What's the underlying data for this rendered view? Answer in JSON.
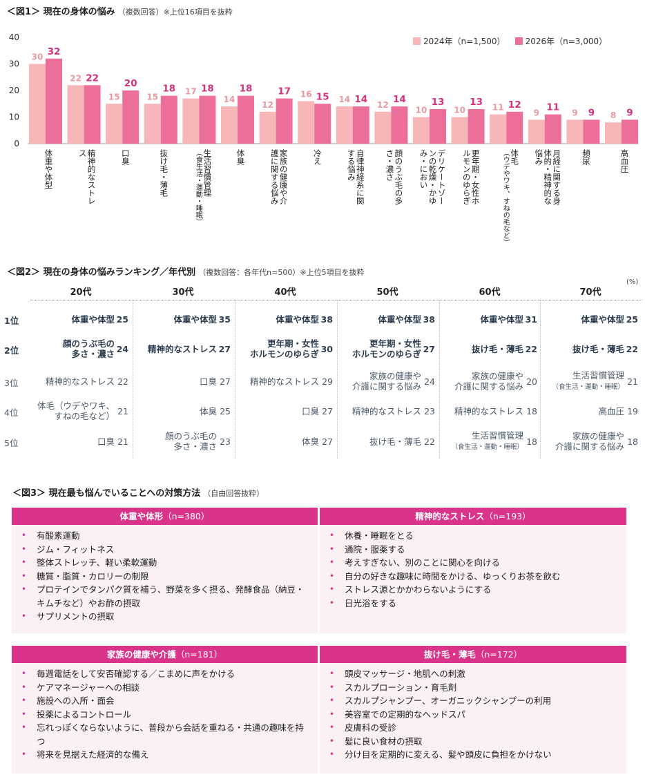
{
  "fig1": {
    "title": "＜図1＞ 現在の身体の悩み",
    "subtitle": "（複数回答）※上位16項目を抜粋"
  },
  "chart_data": {
    "type": "bar",
    "ylim": [
      0,
      40
    ],
    "yticks": [
      "0",
      "10",
      "20",
      "30",
      "40"
    ],
    "ylabel": "(%)",
    "legend_position": "top-right",
    "colors": {
      "2024": "#f7b7b8",
      "2026": "#ec6f9b",
      "label2024": "#e79aa0",
      "label2026": "#d4317e"
    },
    "series": [
      {
        "name": "2024年（n=1,500）",
        "values": [
          30,
          22,
          15,
          15,
          17,
          14,
          12,
          16,
          14,
          12,
          10,
          10,
          11,
          9,
          9,
          8
        ]
      },
      {
        "name": "2026年（n=3,000）",
        "values": [
          32,
          22,
          20,
          18,
          18,
          18,
          17,
          15,
          14,
          14,
          13,
          13,
          12,
          11,
          9,
          9
        ]
      }
    ],
    "categories": [
      {
        "main": "体重や体型",
        "sub": ""
      },
      {
        "main": "精神的なストレス",
        "sub": ""
      },
      {
        "main": "口臭",
        "sub": ""
      },
      {
        "main": "抜け毛・薄毛",
        "sub": ""
      },
      {
        "main": "生活習慣管理",
        "sub": "（食生活・運動・睡眠）"
      },
      {
        "main": "体臭",
        "sub": ""
      },
      {
        "main": "家族の健康や介護に関する悩み",
        "sub": ""
      },
      {
        "main": "冷え",
        "sub": ""
      },
      {
        "main": "自律神経系に関する悩み",
        "sub": ""
      },
      {
        "main": "顔のうぶ毛の多さ・濃さ",
        "sub": ""
      },
      {
        "main": "デリケートゾーンの乾燥・かゆみ・におい",
        "sub": ""
      },
      {
        "main": "更年期・女性ホルモンのゆらぎ",
        "sub": ""
      },
      {
        "main": "体毛",
        "sub": "（ウデやワキ、すねの毛など）"
      },
      {
        "main": "月経に関する身体的・精神的な悩み",
        "sub": ""
      },
      {
        "main": "頻尿",
        "sub": ""
      },
      {
        "main": "高血圧",
        "sub": ""
      }
    ]
  },
  "fig2": {
    "title": "＜図2＞ 現在の身体の悩みランキング／年代別",
    "subtitle": "（複数回答：各年代n=500）※上位5項目を抜粋",
    "pct": "(%)",
    "ranks": [
      "1位",
      "2位",
      "3位",
      "4位",
      "5位"
    ],
    "columns": [
      {
        "age": "20代",
        "rows": [
          {
            "l1": "体重や体型",
            "l2": "",
            "v": "25"
          },
          {
            "l1": "顔のうぶ毛の",
            "l2": "多さ・濃さ",
            "v": "24"
          },
          {
            "l1": "精神的なストレス",
            "l2": "",
            "v": "22"
          },
          {
            "l1": "体毛（ウデやワキ、",
            "l2": "すねの毛など）",
            "v": "21"
          },
          {
            "l1": "口臭",
            "l2": "",
            "v": "21"
          }
        ]
      },
      {
        "age": "30代",
        "rows": [
          {
            "l1": "体重や体型",
            "l2": "",
            "v": "35"
          },
          {
            "l1": "精神的なストレス",
            "l2": "",
            "v": "27"
          },
          {
            "l1": "口臭",
            "l2": "",
            "v": "27"
          },
          {
            "l1": "体臭",
            "l2": "",
            "v": "25"
          },
          {
            "l1": "顔のうぶ毛の",
            "l2": "多さ・濃さ",
            "v": "23"
          }
        ]
      },
      {
        "age": "40代",
        "rows": [
          {
            "l1": "体重や体型",
            "l2": "",
            "v": "38"
          },
          {
            "l1": "更年期・女性",
            "l2": "ホルモンのゆらぎ",
            "v": "30"
          },
          {
            "l1": "精神的なストレス",
            "l2": "",
            "v": "29"
          },
          {
            "l1": "口臭",
            "l2": "",
            "v": "27"
          },
          {
            "l1": "体臭",
            "l2": "",
            "v": "27"
          }
        ]
      },
      {
        "age": "50代",
        "rows": [
          {
            "l1": "体重や体型",
            "l2": "",
            "v": "38"
          },
          {
            "l1": "更年期・女性",
            "l2": "ホルモンのゆらぎ",
            "v": "27"
          },
          {
            "l1": "家族の健康や",
            "l2": "介護に関する悩み",
            "v": "24"
          },
          {
            "l1": "精神的なストレス",
            "l2": "",
            "v": "23"
          },
          {
            "l1": "抜け毛・薄毛",
            "l2": "",
            "v": "22"
          }
        ]
      },
      {
        "age": "60代",
        "rows": [
          {
            "l1": "体重や体型",
            "l2": "",
            "v": "31"
          },
          {
            "l1": "抜け毛・薄毛",
            "l2": "",
            "v": "22"
          },
          {
            "l1": "家族の健康や",
            "l2": "介護に関する悩み",
            "v": "20"
          },
          {
            "l1": "精神的なストレス",
            "l2": "",
            "v": "18"
          },
          {
            "l1": "生活習慣管理",
            "l2": "（食生活・運動・睡眠）",
            "v": "18"
          }
        ]
      },
      {
        "age": "70代",
        "rows": [
          {
            "l1": "体重や体型",
            "l2": "",
            "v": "25"
          },
          {
            "l1": "抜け毛・薄毛",
            "l2": "",
            "v": "22"
          },
          {
            "l1": "生活習慣管理",
            "l2": "（食生活・運動・睡眠）",
            "v": "21"
          },
          {
            "l1": "高血圧",
            "l2": "",
            "v": "19"
          },
          {
            "l1": "家族の健康や",
            "l2": "介護に関する悩み",
            "v": "18"
          }
        ]
      }
    ]
  },
  "fig3": {
    "title": "＜図3＞ 現在最も悩んでいることへの対策方法",
    "subtitle": "（自由回答抜粋）",
    "boxes": [
      {
        "title": "体重や体形",
        "n": "（n=380）",
        "items": [
          "有酸素運動",
          "ジム・フィットネス",
          "整体ストレッチ、軽い柔軟運動",
          "糖質・脂質・カロリーの制限",
          "プロテインでタンパク質を補う、野菜を多く摂る、発酵食品（納豆・キムチなど）やお酢の摂取",
          "サプリメントの摂取"
        ]
      },
      {
        "title": "精神的なストレス",
        "n": "（n=193）",
        "items": [
          "休養・睡眠をとる",
          "通院・服薬する",
          "考えすぎない、別のことに関心を向ける",
          "自分の好きな趣味に時間をかける、ゆっくりお茶を飲む",
          "ストレス源とかかわらないようにする",
          "日光浴をする"
        ]
      },
      {
        "title": "家族の健康や介護",
        "n": "（n=181）",
        "items": [
          "毎週電話をして安否確認する／こまめに声をかける",
          "ケアマネージャーへの相談",
          "施設への入所・面会",
          "投薬によるコントロール",
          "忘れっぽくならないように、普段から会話を重ねる・共通の趣味を持つ",
          "将来を見据えた経済的な備え"
        ]
      },
      {
        "title": "抜け毛・薄毛",
        "n": "（n=172）",
        "items": [
          "頭皮マッサージ・地肌への刺激",
          "スカルプローション・育毛剤",
          "スカルプシャンプー、オーガニックシャンプーの利用",
          "美容室での定期的なヘッドスパ",
          "皮膚科の受診",
          "髪に良い食材の摂取",
          "分け目を定期的に変える、髪や頭皮に負担をかけない"
        ]
      }
    ]
  }
}
